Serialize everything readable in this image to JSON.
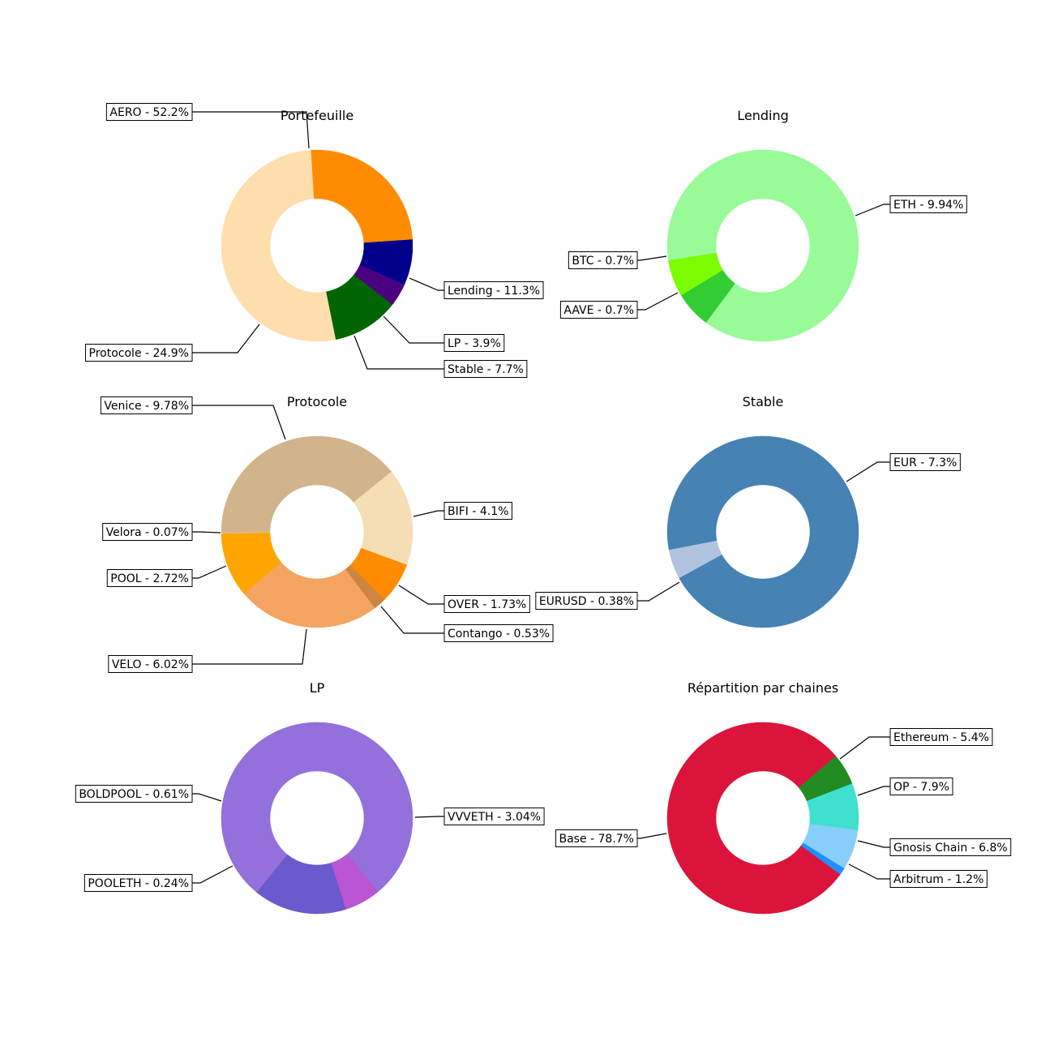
{
  "chart_data": [
    {
      "type": "pie",
      "title": "Portefeuille",
      "slices": [
        {
          "label": "AERO - 52.2%",
          "value": 52.2,
          "color": "#FFDEAD"
        },
        {
          "label": "Lending - 11.3%",
          "value": 11.3,
          "color": "#006400"
        },
        {
          "label": "LP - 3.9%",
          "value": 3.9,
          "color": "#4B0082"
        },
        {
          "label": "Stable - 7.7%",
          "value": 7.7,
          "color": "#00008B"
        },
        {
          "label": "Protocole - 24.9%",
          "value": 24.9,
          "color": "#FF8C00"
        }
      ]
    },
    {
      "type": "pie",
      "title": "Lending",
      "slices": [
        {
          "label": "ETH - 9.94%",
          "value": 9.94,
          "color": "#98FB98"
        },
        {
          "label": "AAVE - 0.7%",
          "value": 0.7,
          "color": "#32CD32"
        },
        {
          "label": "BTC - 0.7%",
          "value": 0.7,
          "color": "#7CFC00"
        }
      ]
    },
    {
      "type": "pie",
      "title": "Protocole",
      "slices": [
        {
          "label": "Venice - 9.78%",
          "value": 9.78,
          "color": "#D2B48C"
        },
        {
          "label": "BIFI - 4.1%",
          "value": 4.1,
          "color": "#F5DEB3"
        },
        {
          "label": "OVER - 1.73%",
          "value": 1.73,
          "color": "#FF8C00"
        },
        {
          "label": "Contango - 0.53%",
          "value": 0.53,
          "color": "#CD853F"
        },
        {
          "label": "VELO - 6.02%",
          "value": 6.02,
          "color": "#F4A460"
        },
        {
          "label": "POOL - 2.72%",
          "value": 2.72,
          "color": "#FFA500"
        },
        {
          "label": "Velora - 0.07%",
          "value": 0.07,
          "color": "#DEB887"
        }
      ]
    },
    {
      "type": "pie",
      "title": "Stable",
      "slices": [
        {
          "label": "EUR - 7.3%",
          "value": 7.3,
          "color": "#4682B4"
        },
        {
          "label": "EURUSD - 0.38%",
          "value": 0.38,
          "color": "#B0C4DE"
        }
      ]
    },
    {
      "type": "pie",
      "title": "LP",
      "slices": [
        {
          "label": "VVVETH - 3.04%",
          "value": 3.04,
          "color": "#9370DB"
        },
        {
          "label": "POOLETH - 0.24%",
          "value": 0.24,
          "color": "#BA55D3"
        },
        {
          "label": "BOLDPOOL - 0.61%",
          "value": 0.61,
          "color": "#6A5ACD"
        }
      ]
    },
    {
      "type": "pie",
      "title": "Répartition par chaines",
      "slices": [
        {
          "label": "Ethereum - 5.4%",
          "value": 5.4,
          "color": "#228B22"
        },
        {
          "label": "OP - 7.9%",
          "value": 7.9,
          "color": "#40E0D0"
        },
        {
          "label": "Gnosis Chain - 6.8%",
          "value": 6.8,
          "color": "#87CEFA"
        },
        {
          "label": "Arbitrum - 1.2%",
          "value": 1.2,
          "color": "#1E90FF"
        },
        {
          "label": "Base - 78.7%",
          "value": 78.7,
          "color": "#DC143C"
        }
      ]
    }
  ]
}
